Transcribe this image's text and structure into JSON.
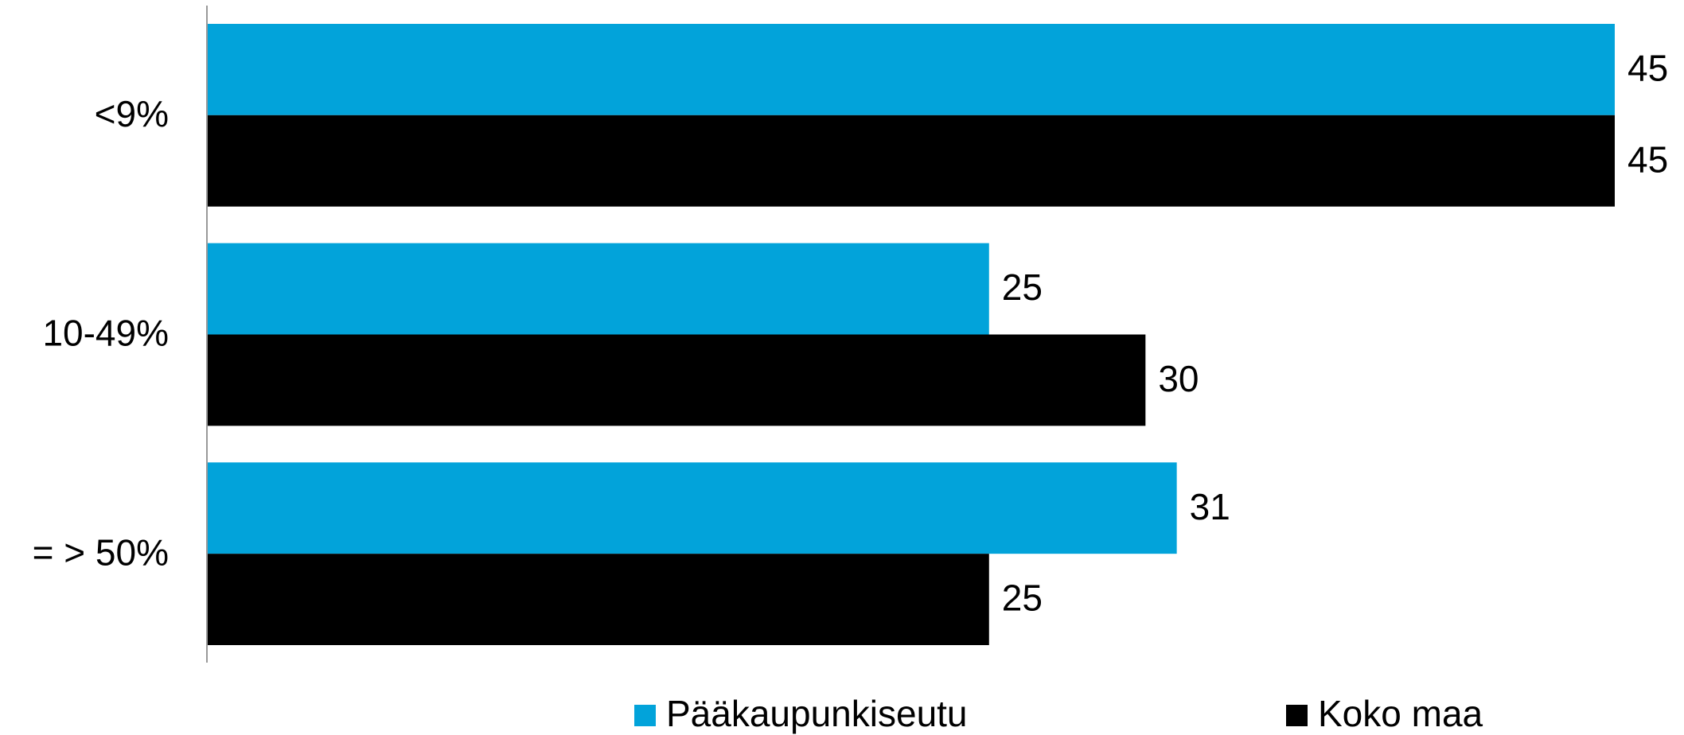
{
  "chart_data": {
    "type": "bar",
    "orientation": "horizontal",
    "categories": [
      "<9%",
      "10-49%",
      "= > 50%"
    ],
    "series": [
      {
        "name": "Pääkaupunkiseutu",
        "color": "#02a3da",
        "values": [
          45,
          25,
          31
        ]
      },
      {
        "name": "Koko maa",
        "color": "#000000",
        "values": [
          45,
          30,
          25
        ]
      }
    ],
    "xlim": [
      0,
      45
    ],
    "legend": "bottom"
  }
}
